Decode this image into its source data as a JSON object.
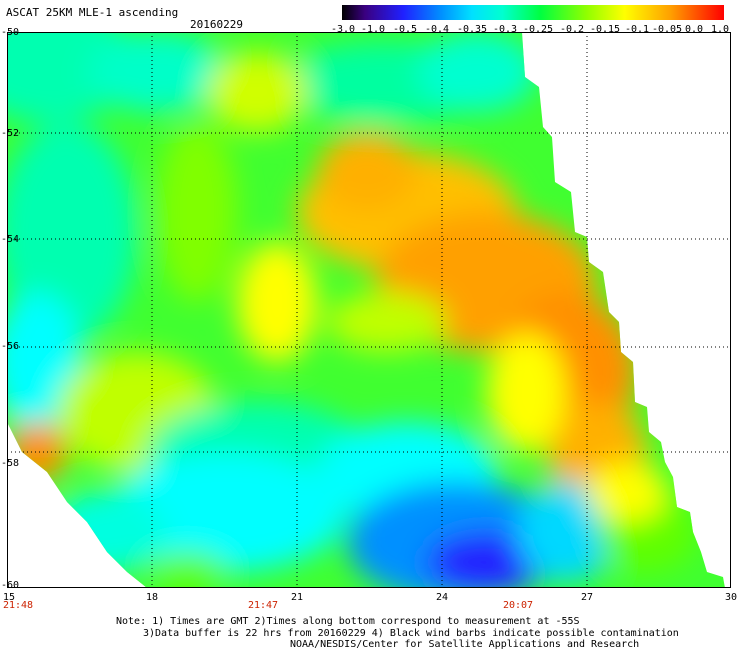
{
  "title": "ASCAT 25KM MLE-1 ascending",
  "date": "20160229",
  "colorbar": {
    "labels": [
      "-3.0",
      "-1.0",
      "-0.5",
      "-0.4",
      "-0.35",
      "-0.3",
      "-0.25",
      "-0.2",
      "-0.15",
      "-0.1",
      "-0.05",
      "0.0",
      "1.0"
    ]
  },
  "y_ticks": [
    "-50",
    "-52",
    "-54",
    "-56",
    "-58",
    "-60"
  ],
  "x_ticks": [
    "15",
    "18",
    "21",
    "24",
    "27",
    "30"
  ],
  "time_labels": [
    "21:48",
    "21:47",
    "20:07"
  ],
  "notes": [
    "Note: 1) Times are GMT 2)Times along bottom correspond to measurement at -55S",
    "3)Data buffer is 22 hrs from 20160229 4) Black wind barbs indicate possible contamination",
    "NOAA/NESDIS/Center for Satellite Applications and Research"
  ],
  "colors": {
    "colorbar_stops": [
      "#000000",
      "#5a00a0",
      "#1e28ff",
      "#0088ff",
      "#00c8ff",
      "#00ffff",
      "#00ffb4",
      "#00ff50",
      "#50ff00",
      "#c8ff00",
      "#ffff00",
      "#ffa000",
      "#ff4000",
      "#ff0000"
    ]
  },
  "chart_data": {
    "type": "heatmap",
    "xlim": [
      15,
      30
    ],
    "ylim": [
      -60,
      -50
    ],
    "grid": true
  }
}
